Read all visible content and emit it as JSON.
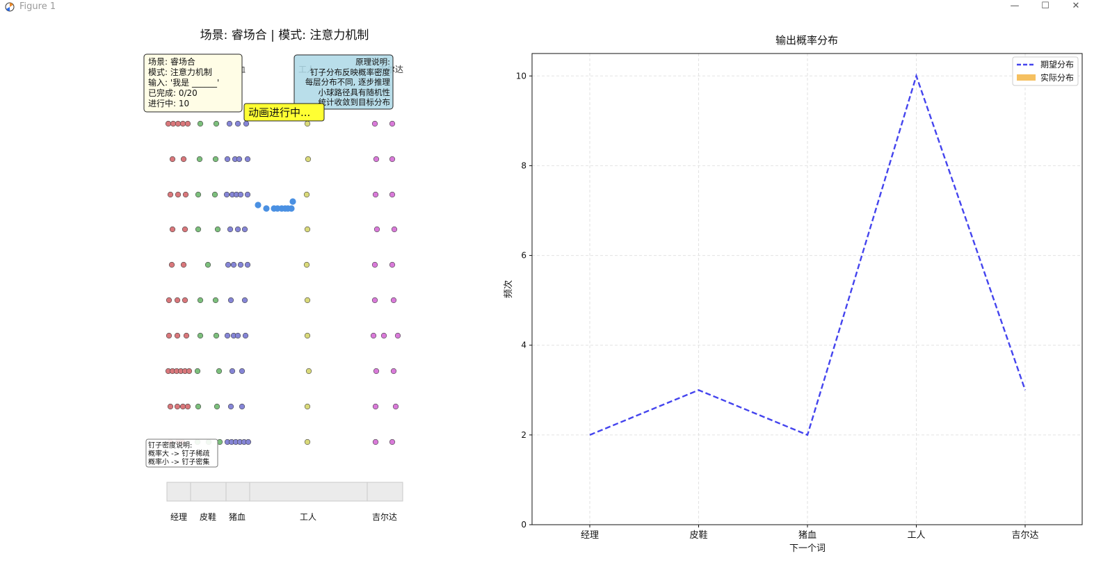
{
  "window": {
    "title": "Figure 1"
  },
  "board": {
    "title": "场景: 睿场合 | 模式: 注意力机制",
    "top_labels": [
      "经理",
      "皮鞋",
      "猪血",
      "工人",
      "吉尔达"
    ],
    "info_box": [
      "场景: 睿场合",
      "模式: 注意力机制",
      "输入: '我是 ______'",
      "已完成: 0/20",
      "进行中: 10"
    ],
    "principle_box": [
      "原理说明:",
      "钉子分布反映概率密度",
      "每层分布不同, 逐步推理",
      "小球路径具有随机性",
      "统计收敛到目标分布"
    ],
    "status_badge": "动画进行中...",
    "density_note": [
      "钉子密度说明:",
      "概率大 -> 钉子稀疏",
      "概率小 -> 钉子密集"
    ],
    "bin_labels": [
      "经理",
      "皮鞋",
      "猪血",
      "工人",
      "吉尔达"
    ],
    "colors": {
      "red": "#d9777b",
      "green": "#7cbf7c",
      "blue": "#8585d6",
      "yellow": "#d9d97a",
      "magenta": "#d97ad9",
      "ball": "#4a90e2"
    }
  },
  "chart_data": {
    "type": "line",
    "title": "输出概率分布",
    "xlabel": "下一个词",
    "ylabel": "频次",
    "categories": [
      "经理",
      "皮鞋",
      "猪血",
      "工人",
      "吉尔达"
    ],
    "series": [
      {
        "name": "期望分布",
        "values": [
          2,
          3,
          2,
          10,
          3
        ],
        "color": "#4444ee",
        "style": "dashed"
      },
      {
        "name": "实际分布",
        "values": [
          0,
          0,
          0,
          0,
          0
        ],
        "color": "#f5c060",
        "style": "bar"
      }
    ],
    "ylim": [
      0,
      10.5
    ],
    "yticks": [
      0,
      2,
      4,
      6,
      8,
      10
    ],
    "grid": true,
    "legend": "top-right"
  }
}
